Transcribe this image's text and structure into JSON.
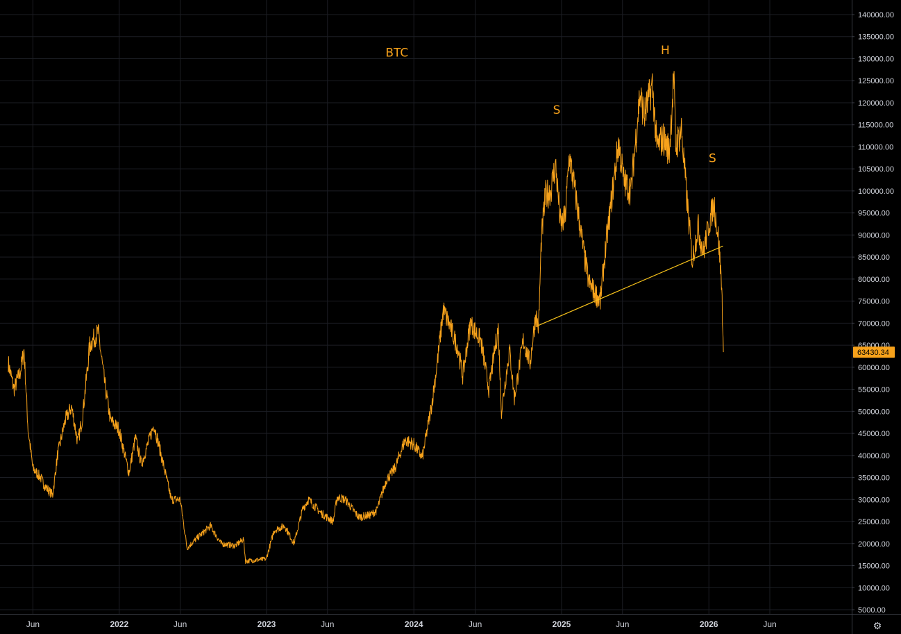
{
  "chart_data": {
    "type": "line",
    "title": "BTC",
    "xlabel": "",
    "ylabel": "",
    "ylim": [
      3000,
      144000
    ],
    "y_ticks": [
      "140000.00",
      "135000.00",
      "130000.00",
      "125000.00",
      "120000.00",
      "115000.00",
      "110000.00",
      "105000.00",
      "100000.00",
      "95000.00",
      "90000.00",
      "85000.00",
      "80000.00",
      "75000.00",
      "70000.00",
      "65000.00",
      "60000.00",
      "55000.00",
      "50000.00",
      "45000.00",
      "40000.00",
      "35000.00",
      "30000.00",
      "25000.00",
      "20000.00",
      "15000.00",
      "10000.00",
      "5000.00"
    ],
    "x_ticks": [
      {
        "label": "Jun",
        "date": "2021-06-01",
        "year": false
      },
      {
        "label": "2022",
        "date": "2022-01-01",
        "year": true
      },
      {
        "label": "Jun",
        "date": "2022-06-01",
        "year": false
      },
      {
        "label": "2023",
        "date": "2023-01-01",
        "year": true
      },
      {
        "label": "Jun",
        "date": "2023-06-01",
        "year": false
      },
      {
        "label": "2024",
        "date": "2024-01-01",
        "year": true
      },
      {
        "label": "Jun",
        "date": "2024-06-01",
        "year": false
      },
      {
        "label": "2025",
        "date": "2025-01-01",
        "year": true
      },
      {
        "label": "Jun",
        "date": "2025-06-01",
        "year": false
      },
      {
        "label": "2026",
        "date": "2026-01-01",
        "year": true
      },
      {
        "label": "Jun",
        "date": "2026-06-01",
        "year": false
      }
    ],
    "grid": true,
    "series": [
      {
        "color": "#f7a21b",
        "points": [
          [
            "2021-04-01",
            61000
          ],
          [
            "2021-04-15",
            55000
          ],
          [
            "2021-05-01",
            59000
          ],
          [
            "2021-05-10",
            64000
          ],
          [
            "2021-05-20",
            46000
          ],
          [
            "2021-06-01",
            37000
          ],
          [
            "2021-06-20",
            35000
          ],
          [
            "2021-07-01",
            33000
          ],
          [
            "2021-07-20",
            31000
          ],
          [
            "2021-08-01",
            40000
          ],
          [
            "2021-08-20",
            48000
          ],
          [
            "2021-09-05",
            51000
          ],
          [
            "2021-09-20",
            43000
          ],
          [
            "2021-10-01",
            48000
          ],
          [
            "2021-10-20",
            65000
          ],
          [
            "2021-11-10",
            68000
          ],
          [
            "2021-11-25",
            57000
          ],
          [
            "2021-12-10",
            48000
          ],
          [
            "2021-12-31",
            46000
          ],
          [
            "2022-01-10",
            42000
          ],
          [
            "2022-01-25",
            36000
          ],
          [
            "2022-02-10",
            44000
          ],
          [
            "2022-02-25",
            38000
          ],
          [
            "2022-03-28",
            47000
          ],
          [
            "2022-04-15",
            40000
          ],
          [
            "2022-05-10",
            30000
          ],
          [
            "2022-06-01",
            30000
          ],
          [
            "2022-06-18",
            19000
          ],
          [
            "2022-07-10",
            21000
          ],
          [
            "2022-08-15",
            24000
          ],
          [
            "2022-09-10",
            20000
          ],
          [
            "2022-10-15",
            19500
          ],
          [
            "2022-11-05",
            21000
          ],
          [
            "2022-11-10",
            16000
          ],
          [
            "2022-12-31",
            16500
          ],
          [
            "2023-01-20",
            23000
          ],
          [
            "2023-02-15",
            24000
          ],
          [
            "2023-03-10",
            20000
          ],
          [
            "2023-04-01",
            28000
          ],
          [
            "2023-04-15",
            30000
          ],
          [
            "2023-05-15",
            27000
          ],
          [
            "2023-06-15",
            25000
          ],
          [
            "2023-06-25",
            30500
          ],
          [
            "2023-07-15",
            30000
          ],
          [
            "2023-08-17",
            26000
          ],
          [
            "2023-09-15",
            26500
          ],
          [
            "2023-10-01",
            27500
          ],
          [
            "2023-10-25",
            34500
          ],
          [
            "2023-11-15",
            37000
          ],
          [
            "2023-12-10",
            43500
          ],
          [
            "2024-01-01",
            42500
          ],
          [
            "2024-01-22",
            39500
          ],
          [
            "2024-02-15",
            52000
          ],
          [
            "2024-02-28",
            61000
          ],
          [
            "2024-03-14",
            73000
          ],
          [
            "2024-04-01",
            69000
          ],
          [
            "2024-04-20",
            64000
          ],
          [
            "2024-05-01",
            58000
          ],
          [
            "2024-05-20",
            70000
          ],
          [
            "2024-06-15",
            66000
          ],
          [
            "2024-07-05",
            55000
          ],
          [
            "2024-07-28",
            69000
          ],
          [
            "2024-08-05",
            50000
          ],
          [
            "2024-08-25",
            64000
          ],
          [
            "2024-09-06",
            53000
          ],
          [
            "2024-09-28",
            66000
          ],
          [
            "2024-10-15",
            61000
          ],
          [
            "2024-10-29",
            72000
          ],
          [
            "2024-11-05",
            69000
          ],
          [
            "2024-11-12",
            89000
          ],
          [
            "2024-11-22",
            99000
          ],
          [
            "2024-12-05",
            100000
          ],
          [
            "2024-12-17",
            106000
          ],
          [
            "2024-12-30",
            92000
          ],
          [
            "2025-01-10",
            94000
          ],
          [
            "2025-01-20",
            108000
          ],
          [
            "2025-02-05",
            99000
          ],
          [
            "2025-02-25",
            86000
          ],
          [
            "2025-03-10",
            79000
          ],
          [
            "2025-04-07",
            75000
          ],
          [
            "2025-04-20",
            87000
          ],
          [
            "2025-05-01",
            95000
          ],
          [
            "2025-05-22",
            111000
          ],
          [
            "2025-06-05",
            102000
          ],
          [
            "2025-06-22",
            100000
          ],
          [
            "2025-07-14",
            122000
          ],
          [
            "2025-07-25",
            117000
          ],
          [
            "2025-08-14",
            124000
          ],
          [
            "2025-08-25",
            110000
          ],
          [
            "2025-09-10",
            112000
          ],
          [
            "2025-09-25",
            109000
          ],
          [
            "2025-10-06",
            126000
          ],
          [
            "2025-10-11",
            110000
          ],
          [
            "2025-10-25",
            114000
          ],
          [
            "2025-11-05",
            101000
          ],
          [
            "2025-11-21",
            84000
          ],
          [
            "2025-12-05",
            92000
          ],
          [
            "2025-12-18",
            86000
          ],
          [
            "2026-01-05",
            94000
          ],
          [
            "2026-01-14",
            97000
          ],
          [
            "2026-01-25",
            89000
          ],
          [
            "2026-02-02",
            78000
          ],
          [
            "2026-02-06",
            63430
          ]
        ]
      }
    ],
    "trendline": {
      "color": "#f7c21b",
      "from": [
        "2024-11-05",
        69500
      ],
      "to": [
        "2026-02-05",
        87500
      ]
    },
    "annotations": [
      {
        "text": "BTC",
        "date": "2023-11-20",
        "value": 130500
      },
      {
        "text": "S",
        "date": "2024-12-20",
        "value": 117500
      },
      {
        "text": "H",
        "date": "2025-09-15",
        "value": 131000
      },
      {
        "text": "S",
        "date": "2026-01-10",
        "value": 106500
      }
    ],
    "last_price": "63430.34",
    "last_value": 63430.34,
    "price_tag_color": "#f7a21b"
  },
  "ui": {
    "settings_icon": "⚙"
  }
}
